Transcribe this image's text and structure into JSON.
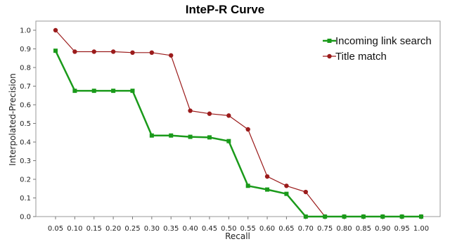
{
  "chart_data": {
    "type": "line",
    "title": "InteP-R Curve",
    "xlabel": "Recall",
    "ylabel": "Interpolated-Precision",
    "x": [
      0.05,
      0.1,
      0.15,
      0.2,
      0.25,
      0.3,
      0.35,
      0.4,
      0.45,
      0.5,
      0.55,
      0.6,
      0.65,
      0.7,
      0.75,
      0.8,
      0.85,
      0.9,
      0.95,
      1.0
    ],
    "x_tick_labels": [
      "0.05",
      "0.10",
      "0.15",
      "0.20",
      "0.25",
      "0.30",
      "0.35",
      "0.40",
      "0.45",
      "0.50",
      "0.55",
      "0.60",
      "0.65",
      "0.70",
      "0.75",
      "0.80",
      "0.85",
      "0.90",
      "0.95",
      "1.00"
    ],
    "y_ticks": [
      0.0,
      0.1,
      0.2,
      0.3,
      0.4,
      0.5,
      0.6,
      0.7,
      0.8,
      0.9,
      1.0
    ],
    "y_tick_labels": [
      "0.0",
      "0.1",
      "0.2",
      "0.3",
      "0.4",
      "0.5",
      "0.6",
      "0.7",
      "0.8",
      "0.9",
      "1.0"
    ],
    "ylim": [
      0,
      1.0
    ],
    "grid": false,
    "legend_position": "top-right",
    "series": [
      {
        "name": "Incoming link search",
        "color": "#1a9a1a",
        "marker": "square",
        "values": [
          0.89,
          0.675,
          0.675,
          0.675,
          0.675,
          0.435,
          0.435,
          0.428,
          0.425,
          0.405,
          0.165,
          0.145,
          0.122,
          0.0,
          0.0,
          0.0,
          0.0,
          0.0,
          0.0,
          0.0
        ]
      },
      {
        "name": "Title match",
        "color": "#9b1b1b",
        "marker": "circle",
        "values": [
          1.0,
          0.885,
          0.885,
          0.885,
          0.88,
          0.88,
          0.865,
          0.568,
          0.552,
          0.542,
          0.468,
          0.215,
          0.165,
          0.132,
          0.0,
          0.0,
          0.0,
          0.0,
          0.0,
          0.0
        ]
      }
    ]
  }
}
